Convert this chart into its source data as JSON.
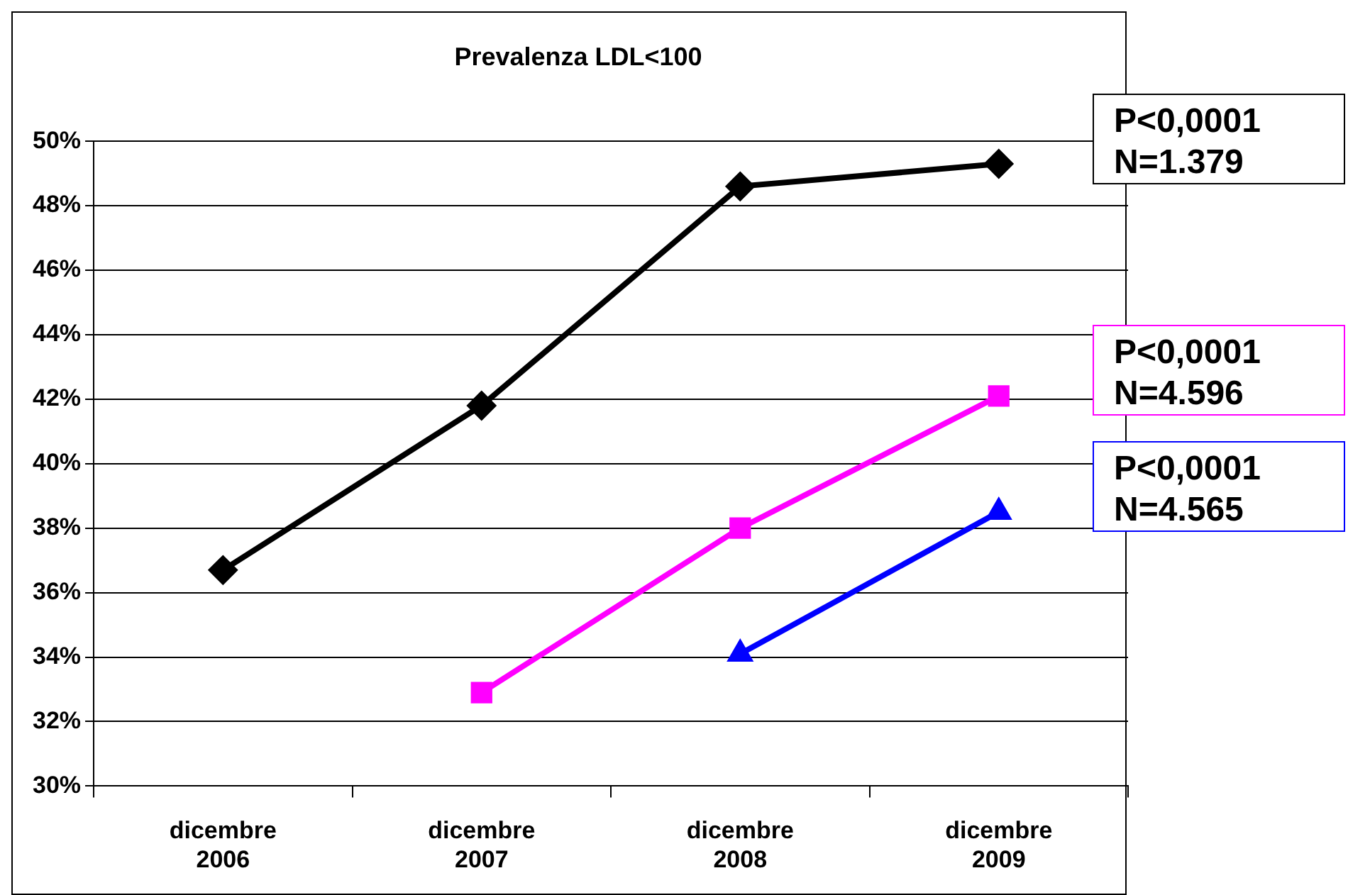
{
  "chart_data": {
    "type": "line",
    "title": "Prevalenza LDL<100",
    "categories": [
      "dicembre 2006",
      "dicembre 2007",
      "dicembre 2008",
      "dicembre 2009"
    ],
    "series": [
      {
        "color": "#000000",
        "marker": "diamond",
        "values": [
          36.7,
          41.8,
          48.6,
          49.3
        ]
      },
      {
        "color": "#ff00ff",
        "marker": "square",
        "values": [
          null,
          32.9,
          38.0,
          42.1
        ]
      },
      {
        "color": "#0000ff",
        "marker": "triangle",
        "values": [
          null,
          null,
          34.1,
          38.5
        ]
      }
    ],
    "ylim": [
      30,
      50
    ],
    "yticks": [
      {
        "value": 30,
        "label": "30%"
      },
      {
        "value": 32,
        "label": "32%"
      },
      {
        "value": 34,
        "label": "34%"
      },
      {
        "value": 36,
        "label": "36%"
      },
      {
        "value": 38,
        "label": "38%"
      },
      {
        "value": 40,
        "label": "40%"
      },
      {
        "value": 42,
        "label": "42%"
      },
      {
        "value": 44,
        "label": "44%"
      },
      {
        "value": 46,
        "label": "46%"
      },
      {
        "value": 48,
        "label": "48%"
      },
      {
        "value": 50,
        "label": "50%"
      }
    ],
    "grid": "y",
    "legend": false,
    "line_style": "solid",
    "annotations": [
      "P<0,0001\nN=1.379",
      "P<0,0001\nN=4.596",
      "P<0,0001\nN=4.565"
    ]
  }
}
